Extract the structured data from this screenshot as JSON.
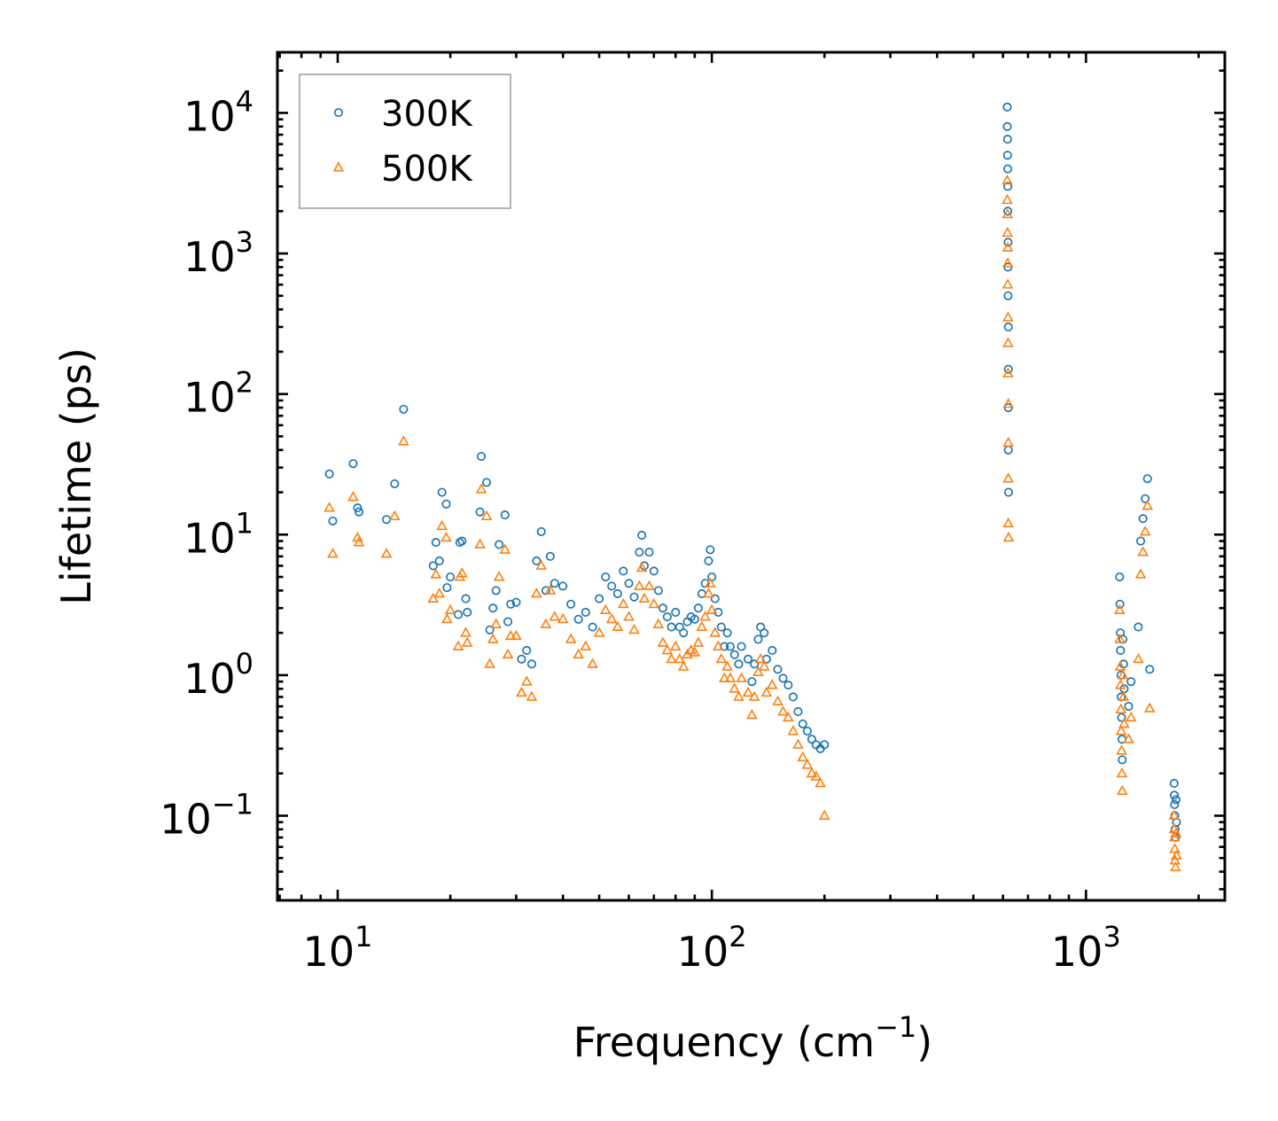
{
  "chart_data": {
    "type": "scatter",
    "title": "",
    "xlabel": {
      "base": "Frequency (cm",
      "sup": "−1",
      "tail": ")"
    },
    "ylabel": "Lifetime (ps)",
    "xscale": "log",
    "yscale": "log",
    "xlim": [
      6.9,
      2350
    ],
    "ylim": [
      0.025,
      27000
    ],
    "xticks": [
      {
        "value": 10,
        "base": "10",
        "exp": "1"
      },
      {
        "value": 100,
        "base": "10",
        "exp": "2"
      },
      {
        "value": 1000,
        "base": "10",
        "exp": "3"
      }
    ],
    "yticks": [
      {
        "value": 0.1,
        "base": "10",
        "exp": "−1"
      },
      {
        "value": 1,
        "base": "10",
        "exp": "0"
      },
      {
        "value": 10,
        "base": "10",
        "exp": "1"
      },
      {
        "value": 100,
        "base": "10",
        "exp": "2"
      },
      {
        "value": 1000,
        "base": "10",
        "exp": "3"
      },
      {
        "value": 10000,
        "base": "10",
        "exp": "4"
      }
    ],
    "grid": false,
    "legend_position": "top-left",
    "series": [
      {
        "name": "300K",
        "marker": "circle",
        "color": "#1f77b4",
        "points": [
          [
            9.5,
            27
          ],
          [
            9.7,
            12.5
          ],
          [
            11,
            32
          ],
          [
            11.3,
            15.5
          ],
          [
            11.4,
            14.5
          ],
          [
            13.5,
            12.8
          ],
          [
            14.2,
            23
          ],
          [
            15,
            78
          ],
          [
            18,
            6
          ],
          [
            18.3,
            8.8
          ],
          [
            18.7,
            6.5
          ],
          [
            19,
            20
          ],
          [
            19.5,
            16.5
          ],
          [
            19.6,
            4.2
          ],
          [
            20,
            5
          ],
          [
            21,
            2.7
          ],
          [
            21.2,
            8.8
          ],
          [
            21.5,
            9
          ],
          [
            22,
            3.5
          ],
          [
            22.2,
            2.8
          ],
          [
            24,
            14.5
          ],
          [
            24.2,
            36
          ],
          [
            25,
            23.5
          ],
          [
            25.5,
            2.1
          ],
          [
            26,
            3
          ],
          [
            26.5,
            4
          ],
          [
            27,
            8.5
          ],
          [
            28,
            13.8
          ],
          [
            28.5,
            2.4
          ],
          [
            29,
            3.2
          ],
          [
            30,
            3.3
          ],
          [
            31,
            1.3
          ],
          [
            32,
            1.5
          ],
          [
            33,
            1.2
          ],
          [
            34,
            6.5
          ],
          [
            35,
            10.5
          ],
          [
            36,
            4
          ],
          [
            37,
            7
          ],
          [
            38,
            4.5
          ],
          [
            40,
            4.3
          ],
          [
            42,
            3.2
          ],
          [
            44,
            2.5
          ],
          [
            46,
            2.8
          ],
          [
            48,
            2.2
          ],
          [
            50,
            3.5
          ],
          [
            52,
            5
          ],
          [
            54,
            4.3
          ],
          [
            56,
            3.8
          ],
          [
            58,
            5.5
          ],
          [
            60,
            4.5
          ],
          [
            62,
            3.6
          ],
          [
            64,
            7.5
          ],
          [
            65,
            9.9
          ],
          [
            66,
            6
          ],
          [
            68,
            7.5
          ],
          [
            70,
            5.5
          ],
          [
            72,
            4
          ],
          [
            74,
            3
          ],
          [
            76,
            2.6
          ],
          [
            78,
            2.2
          ],
          [
            80,
            2.8
          ],
          [
            82,
            2.2
          ],
          [
            84,
            2
          ],
          [
            86,
            2.4
          ],
          [
            88,
            2.6
          ],
          [
            90,
            2.5
          ],
          [
            92,
            3
          ],
          [
            94,
            3.8
          ],
          [
            96,
            4.5
          ],
          [
            98,
            6.5
          ],
          [
            99,
            7.8
          ],
          [
            100,
            5
          ],
          [
            102,
            3.5
          ],
          [
            104,
            2.8
          ],
          [
            106,
            2.2
          ],
          [
            108,
            1.6
          ],
          [
            110,
            2
          ],
          [
            112,
            1.6
          ],
          [
            115,
            1.4
          ],
          [
            118,
            1.2
          ],
          [
            120,
            1.6
          ],
          [
            125,
            1.3
          ],
          [
            128,
            0.9
          ],
          [
            130,
            1.2
          ],
          [
            133,
            1.8
          ],
          [
            135,
            2.2
          ],
          [
            138,
            2
          ],
          [
            140,
            1.3
          ],
          [
            145,
            1.5
          ],
          [
            150,
            1.1
          ],
          [
            155,
            0.95
          ],
          [
            160,
            0.85
          ],
          [
            165,
            0.7
          ],
          [
            170,
            0.55
          ],
          [
            175,
            0.45
          ],
          [
            180,
            0.4
          ],
          [
            185,
            0.35
          ],
          [
            190,
            0.32
          ],
          [
            195,
            0.3
          ],
          [
            200,
            0.32
          ],
          [
            616,
            11000
          ],
          [
            616,
            8000
          ],
          [
            617,
            6500
          ],
          [
            617,
            5000
          ],
          [
            618,
            4000
          ],
          [
            618,
            3000
          ],
          [
            618,
            2000
          ],
          [
            619,
            1200
          ],
          [
            619,
            800
          ],
          [
            619,
            500
          ],
          [
            620,
            300
          ],
          [
            620,
            150
          ],
          [
            620,
            80
          ],
          [
            620,
            40
          ],
          [
            621,
            20
          ],
          [
            1230,
            5
          ],
          [
            1232,
            3.2
          ],
          [
            1235,
            2
          ],
          [
            1237,
            1.5
          ],
          [
            1240,
            1
          ],
          [
            1242,
            0.7
          ],
          [
            1245,
            0.5
          ],
          [
            1248,
            0.35
          ],
          [
            1250,
            0.25
          ],
          [
            1255,
            1.8
          ],
          [
            1260,
            1.2
          ],
          [
            1265,
            0.8
          ],
          [
            1300,
            0.6
          ],
          [
            1320,
            0.9
          ],
          [
            1380,
            2.2
          ],
          [
            1400,
            9
          ],
          [
            1420,
            13
          ],
          [
            1440,
            18
          ],
          [
            1460,
            25
          ],
          [
            1480,
            1.1
          ],
          [
            1720,
            0.17
          ],
          [
            1722,
            0.14
          ],
          [
            1725,
            0.12
          ],
          [
            1728,
            0.1
          ],
          [
            1730,
            0.08
          ],
          [
            1735,
            0.07
          ],
          [
            1740,
            0.13
          ],
          [
            1745,
            0.09
          ]
        ]
      },
      {
        "name": "500K",
        "marker": "triangle",
        "color": "#ff7f0e",
        "points": [
          [
            9.5,
            15.5
          ],
          [
            9.7,
            7.3
          ],
          [
            11,
            18.5
          ],
          [
            11.3,
            9.5
          ],
          [
            11.4,
            8.8
          ],
          [
            13.5,
            7.3
          ],
          [
            14.2,
            13.5
          ],
          [
            15,
            46
          ],
          [
            18,
            3.5
          ],
          [
            18.3,
            5.2
          ],
          [
            18.7,
            3.8
          ],
          [
            19,
            11.5
          ],
          [
            19.5,
            9.5
          ],
          [
            19.6,
            2.5
          ],
          [
            20,
            2.9
          ],
          [
            21,
            1.6
          ],
          [
            21.2,
            5
          ],
          [
            21.5,
            5.3
          ],
          [
            22,
            2
          ],
          [
            22.2,
            1.7
          ],
          [
            24,
            8.5
          ],
          [
            24.2,
            21
          ],
          [
            25,
            13.5
          ],
          [
            25.5,
            1.2
          ],
          [
            26,
            1.8
          ],
          [
            26.5,
            2.3
          ],
          [
            27,
            5
          ],
          [
            28,
            7.8
          ],
          [
            28.5,
            1.4
          ],
          [
            29,
            1.9
          ],
          [
            30,
            1.9
          ],
          [
            31,
            0.75
          ],
          [
            32,
            0.9
          ],
          [
            33,
            0.7
          ],
          [
            34,
            3.8
          ],
          [
            35,
            6
          ],
          [
            36,
            2.3
          ],
          [
            37,
            4
          ],
          [
            38,
            2.6
          ],
          [
            40,
            2.5
          ],
          [
            42,
            1.8
          ],
          [
            44,
            1.4
          ],
          [
            46,
            1.6
          ],
          [
            48,
            1.2
          ],
          [
            50,
            2
          ],
          [
            52,
            2.9
          ],
          [
            54,
            2.5
          ],
          [
            56,
            2.2
          ],
          [
            58,
            3.2
          ],
          [
            60,
            2.6
          ],
          [
            62,
            2.1
          ],
          [
            64,
            4.3
          ],
          [
            65,
            5.8
          ],
          [
            66,
            3.5
          ],
          [
            68,
            4.3
          ],
          [
            70,
            3.2
          ],
          [
            72,
            2.3
          ],
          [
            74,
            1.7
          ],
          [
            76,
            1.5
          ],
          [
            78,
            1.3
          ],
          [
            80,
            1.6
          ],
          [
            82,
            1.3
          ],
          [
            84,
            1.15
          ],
          [
            86,
            1.4
          ],
          [
            88,
            1.5
          ],
          [
            90,
            1.45
          ],
          [
            92,
            1.7
          ],
          [
            94,
            2.2
          ],
          [
            96,
            2.6
          ],
          [
            98,
            3.8
          ],
          [
            99,
            4.5
          ],
          [
            100,
            2.9
          ],
          [
            102,
            2
          ],
          [
            104,
            1.6
          ],
          [
            106,
            1.3
          ],
          [
            108,
            0.95
          ],
          [
            110,
            1.15
          ],
          [
            112,
            0.95
          ],
          [
            115,
            0.8
          ],
          [
            118,
            0.7
          ],
          [
            120,
            0.95
          ],
          [
            125,
            0.75
          ],
          [
            128,
            0.52
          ],
          [
            130,
            0.7
          ],
          [
            133,
            1.05
          ],
          [
            135,
            1.3
          ],
          [
            138,
            1.15
          ],
          [
            140,
            0.75
          ],
          [
            145,
            0.85
          ],
          [
            150,
            0.65
          ],
          [
            155,
            0.55
          ],
          [
            160,
            0.5
          ],
          [
            165,
            0.4
          ],
          [
            170,
            0.32
          ],
          [
            175,
            0.26
          ],
          [
            180,
            0.23
          ],
          [
            185,
            0.2
          ],
          [
            190,
            0.19
          ],
          [
            195,
            0.17
          ],
          [
            200,
            0.1
          ],
          [
            616,
            3300
          ],
          [
            616,
            2400
          ],
          [
            617,
            1900
          ],
          [
            617,
            1400
          ],
          [
            618,
            1100
          ],
          [
            618,
            850
          ],
          [
            618,
            600
          ],
          [
            619,
            350
          ],
          [
            619,
            230
          ],
          [
            619,
            140
          ],
          [
            620,
            85
          ],
          [
            620,
            45
          ],
          [
            620,
            25
          ],
          [
            620,
            12
          ],
          [
            621,
            9.5
          ],
          [
            1230,
            2.9
          ],
          [
            1232,
            1.8
          ],
          [
            1235,
            1.15
          ],
          [
            1237,
            0.85
          ],
          [
            1240,
            0.57
          ],
          [
            1242,
            0.4
          ],
          [
            1245,
            0.29
          ],
          [
            1248,
            0.2
          ],
          [
            1250,
            0.15
          ],
          [
            1255,
            1
          ],
          [
            1260,
            0.7
          ],
          [
            1265,
            0.45
          ],
          [
            1300,
            0.35
          ],
          [
            1320,
            0.5
          ],
          [
            1380,
            1.3
          ],
          [
            1400,
            5.2
          ],
          [
            1420,
            7.5
          ],
          [
            1440,
            10.5
          ],
          [
            1460,
            16
          ],
          [
            1480,
            0.58
          ],
          [
            1720,
            0.1
          ],
          [
            1722,
            0.08
          ],
          [
            1725,
            0.07
          ],
          [
            1728,
            0.058
          ],
          [
            1730,
            0.048
          ],
          [
            1735,
            0.043
          ],
          [
            1740,
            0.075
          ],
          [
            1745,
            0.052
          ]
        ]
      }
    ]
  }
}
